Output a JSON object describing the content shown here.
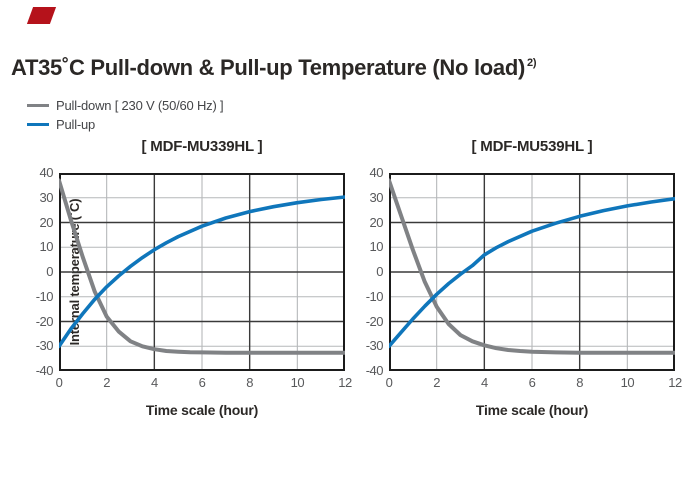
{
  "badge": {
    "type": "red-corner-tab",
    "color": "#b5121b"
  },
  "title": {
    "text": "AT35˚C Pull-down & Pull-up Temperature (No load)",
    "superscript": "2)"
  },
  "legend": {
    "items": [
      {
        "label": "Pull-down [ 230 V (50/60 Hz) ]",
        "color": "#808285"
      },
      {
        "label": "Pull-up",
        "color": "#0f76bb"
      }
    ]
  },
  "colors": {
    "frame": "#1b1b1b",
    "grid_dark": "#3a3a3a",
    "grid_light": "#b6b8ba",
    "pull_down": "#808285",
    "pull_up": "#0f76bb",
    "tick_text": "#58595b",
    "title_text": "#2b2826"
  },
  "chart_data": [
    {
      "type": "line",
      "title": "[ MDF-MU339HL ]",
      "xlabel": "Time scale (hour)",
      "ylabel": "Internal temperature (˚C)",
      "xlim": [
        0,
        12
      ],
      "ylim": [
        -40,
        40
      ],
      "xticks": [
        0,
        2,
        4,
        6,
        8,
        10,
        12
      ],
      "yticks": [
        40,
        30,
        20,
        10,
        0,
        -10,
        -20,
        -30,
        -40
      ],
      "grid": {
        "light_x": [
          2,
          6,
          10
        ],
        "dark_x": [
          4,
          8
        ],
        "light_y": [
          30,
          10,
          -10,
          -30
        ],
        "dark_y": [
          20,
          0,
          -20
        ]
      },
      "series": [
        {
          "name": "Pull-down [ 230 V (50/60 Hz) ]",
          "color": "#808285",
          "width": 4,
          "x": [
            0,
            0.5,
            1,
            1.5,
            2,
            2.5,
            3,
            3.5,
            4,
            4.5,
            5,
            5.5,
            6,
            7,
            8,
            9,
            10,
            11,
            12
          ],
          "y": [
            37,
            21,
            6,
            -8,
            -18,
            -24,
            -28,
            -30,
            -31.2,
            -31.9,
            -32.2,
            -32.4,
            -32.5,
            -32.6,
            -32.6,
            -32.6,
            -32.6,
            -32.6,
            -32.6
          ]
        },
        {
          "name": "Pull-up",
          "color": "#0f76bb",
          "width": 3.6,
          "x": [
            0,
            0.5,
            1,
            1.5,
            2,
            2.5,
            3,
            3.5,
            4,
            4.5,
            5,
            6,
            7,
            8,
            9,
            10,
            11,
            12
          ],
          "y": [
            -30,
            -23,
            -16.8,
            -11,
            -6,
            -1.6,
            2.3,
            5.8,
            9,
            11.8,
            14.3,
            18.5,
            21.8,
            24.4,
            26.4,
            28,
            29.3,
            30.3
          ]
        }
      ]
    },
    {
      "type": "line",
      "title": "[ MDF-MU539HL ]",
      "xlabel": "Time scale (hour)",
      "ylabel": "",
      "xlim": [
        0,
        12
      ],
      "ylim": [
        -40,
        40
      ],
      "xticks": [
        0,
        2,
        4,
        6,
        8,
        10,
        12
      ],
      "yticks": [
        40,
        30,
        20,
        10,
        0,
        -10,
        -20,
        -30,
        -40
      ],
      "grid": {
        "light_x": [
          2,
          6,
          10
        ],
        "dark_x": [
          4,
          8
        ],
        "light_y": [
          30,
          10,
          -10,
          -30
        ],
        "dark_y": [
          20,
          0,
          -20
        ]
      },
      "series": [
        {
          "name": "Pull-down [ 230 V (50/60 Hz) ]",
          "color": "#808285",
          "width": 4,
          "x": [
            0,
            0.5,
            1,
            1.5,
            2,
            2.5,
            3,
            3.5,
            4,
            4.5,
            5,
            5.5,
            6,
            7,
            8,
            9,
            10,
            11,
            12
          ],
          "y": [
            37,
            23,
            9,
            -4,
            -14,
            -21,
            -25.5,
            -28,
            -29.6,
            -30.8,
            -31.5,
            -31.9,
            -32.2,
            -32.5,
            -32.6,
            -32.6,
            -32.6,
            -32.6,
            -32.6
          ]
        },
        {
          "name": "Pull-up",
          "color": "#0f76bb",
          "width": 3.6,
          "x": [
            0,
            0.5,
            1,
            1.5,
            2,
            2.5,
            3,
            3.5,
            4,
            4.5,
            5,
            6,
            7,
            8,
            9,
            10,
            11,
            12
          ],
          "y": [
            -30,
            -24.5,
            -19,
            -13.8,
            -9,
            -4.7,
            -0.9,
            2.6,
            6.9,
            9.8,
            12.3,
            16.5,
            19.7,
            22.5,
            24.8,
            26.7,
            28.3,
            29.6
          ]
        }
      ]
    }
  ]
}
